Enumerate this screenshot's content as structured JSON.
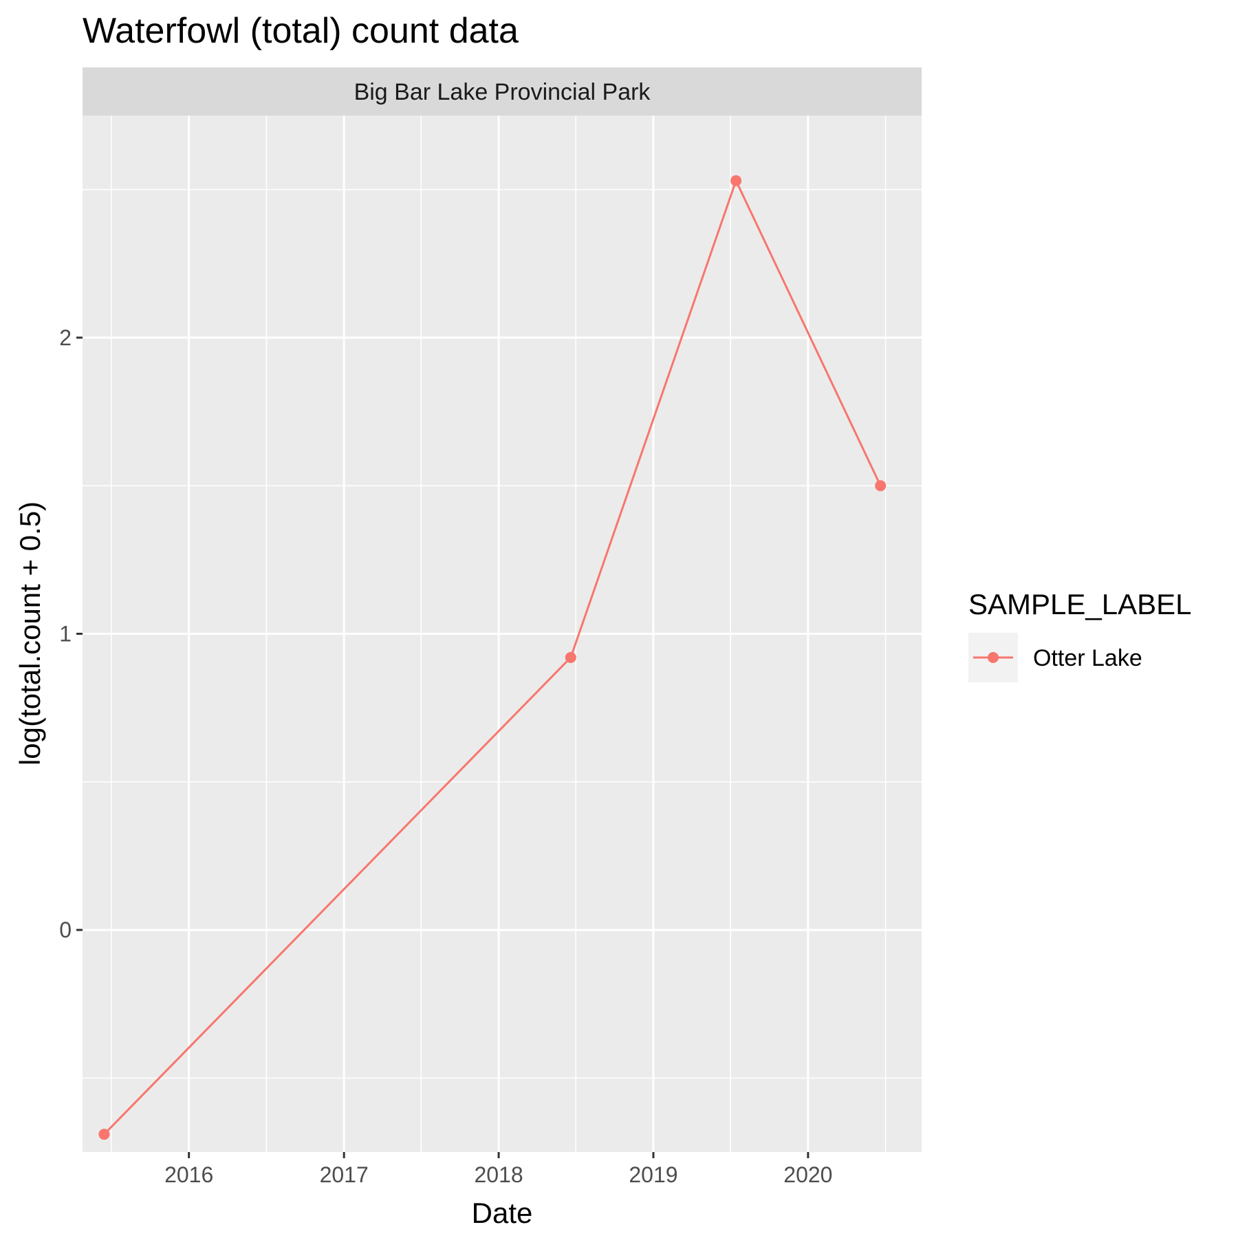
{
  "chart_data": {
    "type": "line",
    "title": "Waterfowl (total) count data",
    "facet": "Big Bar Lake Provincial Park",
    "xlabel": "Date",
    "ylabel": "log(total.count + 0.5)",
    "x_ticks": [
      "2016",
      "2017",
      "2018",
      "2019",
      "2020"
    ],
    "y_ticks": [
      "0",
      "1",
      "2"
    ],
    "xlim": [
      "2015-04-25",
      "2020-09-25"
    ],
    "ylim": [
      -0.75,
      2.75
    ],
    "grid": true,
    "legend": {
      "title": "SAMPLE_LABEL",
      "position": "right"
    },
    "series": [
      {
        "name": "Otter Lake",
        "color": "#F8766D",
        "x": [
          "2015-06-15",
          "2018-06-20",
          "2019-07-15",
          "2020-06-20"
        ],
        "y": [
          -0.69,
          0.92,
          2.53,
          1.5
        ]
      }
    ]
  }
}
